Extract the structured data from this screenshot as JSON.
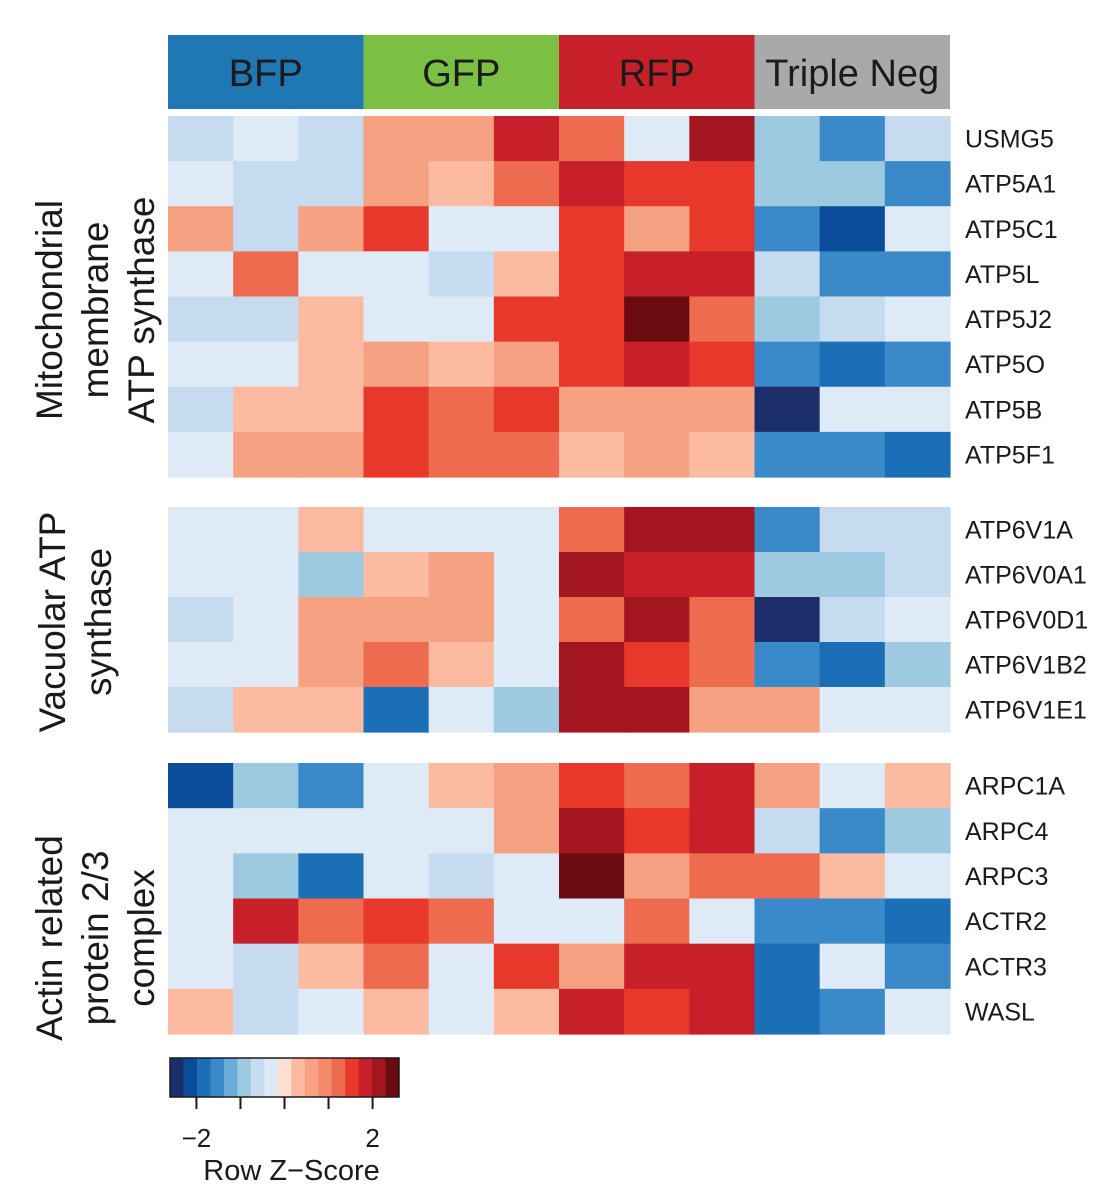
{
  "chart_data": {
    "type": "heatmap",
    "title": "",
    "xlabel": "",
    "ylabel": "",
    "group_headers": [
      {
        "label": "BFP",
        "color": "#1f77b4",
        "columns": 3
      },
      {
        "label": "GFP",
        "color": "#7bc043",
        "columns": 3
      },
      {
        "label": "RFP",
        "color": "#c8202a",
        "columns": 3
      },
      {
        "label": "Triple Neg",
        "color": "#a8a9ab",
        "columns": 3
      }
    ],
    "sections": [
      {
        "title_lines": [
          "Mitochondrial",
          "membrane",
          "ATP synthase"
        ],
        "rows": [
          {
            "gene": "USMG5",
            "z": [
              -0.6,
              -0.2,
              -0.6,
              0.6,
              0.6,
              1.7,
              1.1,
              -0.2,
              2.0,
              -1.0,
              -1.4,
              -0.6
            ]
          },
          {
            "gene": "ATP5A1",
            "z": [
              -0.2,
              -0.6,
              -0.6,
              0.6,
              0.3,
              1.1,
              1.7,
              1.4,
              1.4,
              -1.0,
              -1.0,
              -1.4
            ]
          },
          {
            "gene": "ATP5C1",
            "z": [
              0.6,
              -0.6,
              0.6,
              1.4,
              -0.2,
              -0.2,
              1.4,
              0.6,
              1.4,
              -1.4,
              -2.2,
              -0.4
            ]
          },
          {
            "gene": "ATP5L",
            "z": [
              -0.2,
              1.1,
              -0.2,
              -0.4,
              -0.6,
              0.3,
              1.4,
              1.7,
              1.7,
              -0.6,
              -1.4,
              -1.4
            ]
          },
          {
            "gene": "ATP5J2",
            "z": [
              -0.6,
              -0.6,
              0.3,
              -0.2,
              -0.4,
              1.4,
              1.4,
              2.3,
              1.1,
              -1.0,
              -0.6,
              -0.4
            ]
          },
          {
            "gene": "ATP5O",
            "z": [
              -0.2,
              -0.2,
              0.3,
              0.6,
              0.3,
              0.6,
              1.4,
              1.7,
              1.4,
              -1.4,
              -1.8,
              -1.4
            ]
          },
          {
            "gene": "ATP5B",
            "z": [
              -0.6,
              0.3,
              0.3,
              1.4,
              1.1,
              1.4,
              0.6,
              0.6,
              0.6,
              -2.6,
              -0.4,
              -0.4
            ]
          },
          {
            "gene": "ATP5F1",
            "z": [
              -0.2,
              0.6,
              0.6,
              1.4,
              1.1,
              1.1,
              0.3,
              0.6,
              0.3,
              -1.4,
              -1.4,
              -1.8
            ]
          }
        ]
      },
      {
        "title_lines": [
          "Vacuolar ATP",
          "synthase"
        ],
        "rows": [
          {
            "gene": "ATP6V1A",
            "z": [
              -0.4,
              -0.4,
              0.3,
              -0.4,
              -0.2,
              -0.2,
              1.1,
              2.0,
              2.0,
              -1.4,
              -0.6,
              -0.6
            ]
          },
          {
            "gene": "ATP6V0A1",
            "z": [
              -0.4,
              -0.2,
              -1.0,
              0.3,
              0.6,
              -0.2,
              2.0,
              1.7,
              1.7,
              -1.0,
              -1.0,
              -0.6
            ]
          },
          {
            "gene": "ATP6V0D1",
            "z": [
              -0.6,
              -0.2,
              0.6,
              0.6,
              0.6,
              -0.2,
              1.1,
              2.0,
              1.1,
              -2.6,
              -0.6,
              -0.4
            ]
          },
          {
            "gene": "ATP6V1B2",
            "z": [
              -0.2,
              -0.2,
              0.6,
              1.1,
              0.3,
              -0.2,
              2.0,
              1.4,
              1.1,
              -1.4,
              -1.8,
              -1.0
            ]
          },
          {
            "gene": "ATP6V1E1",
            "z": [
              -0.6,
              0.3,
              0.3,
              -1.8,
              -0.2,
              -1.0,
              2.0,
              2.0,
              0.6,
              0.6,
              -0.4,
              -0.4
            ]
          }
        ]
      },
      {
        "title_lines": [
          "Actin related",
          "protein 2/3",
          "complex"
        ],
        "rows": [
          {
            "gene": "ARPC1A",
            "z": [
              -2.2,
              -1.0,
              -1.4,
              -0.2,
              0.3,
              0.6,
              1.4,
              1.1,
              1.7,
              0.6,
              -0.2,
              0.3
            ]
          },
          {
            "gene": "ARPC4",
            "z": [
              -0.4,
              -0.2,
              -0.4,
              -0.2,
              -0.2,
              0.6,
              2.0,
              1.4,
              1.7,
              -0.6,
              -1.4,
              -1.0
            ]
          },
          {
            "gene": "ARPC3",
            "z": [
              -0.2,
              -1.0,
              -1.8,
              -0.2,
              -0.6,
              -0.2,
              2.3,
              0.6,
              1.1,
              1.1,
              0.3,
              -0.2
            ]
          },
          {
            "gene": "ACTR2",
            "z": [
              -0.2,
              1.7,
              1.1,
              1.4,
              1.1,
              -0.2,
              -0.2,
              1.1,
              -0.2,
              -1.4,
              -1.4,
              -1.8
            ]
          },
          {
            "gene": "ACTR3",
            "z": [
              -0.4,
              -0.6,
              0.3,
              1.1,
              -0.4,
              1.4,
              0.6,
              1.7,
              1.7,
              -1.8,
              -0.4,
              -1.4
            ]
          },
          {
            "gene": "WASL",
            "z": [
              0.3,
              -0.6,
              -0.4,
              0.3,
              -0.2,
              0.3,
              1.7,
              1.4,
              1.7,
              -1.8,
              -1.4,
              -0.2
            ]
          }
        ]
      }
    ],
    "color_scale": {
      "min": -2.6,
      "max": 2.6,
      "colors": [
        "#1c2f6a",
        "#0b4c9a",
        "#1a6fb6",
        "#3a89c9",
        "#6aabd9",
        "#9ecae1",
        "#c6dbef",
        "#deebf7",
        "#fee0d2",
        "#fcbba1",
        "#f7a183",
        "#f4896b",
        "#ef6b50",
        "#e7382b",
        "#c8202a",
        "#a3161f",
        "#6a0b12"
      ],
      "ticks": [
        -2,
        -1,
        0,
        1,
        2
      ],
      "tick_labels": [
        "−2",
        "",
        "",
        "",
        "2"
      ],
      "label": "Row Z−Score"
    }
  }
}
